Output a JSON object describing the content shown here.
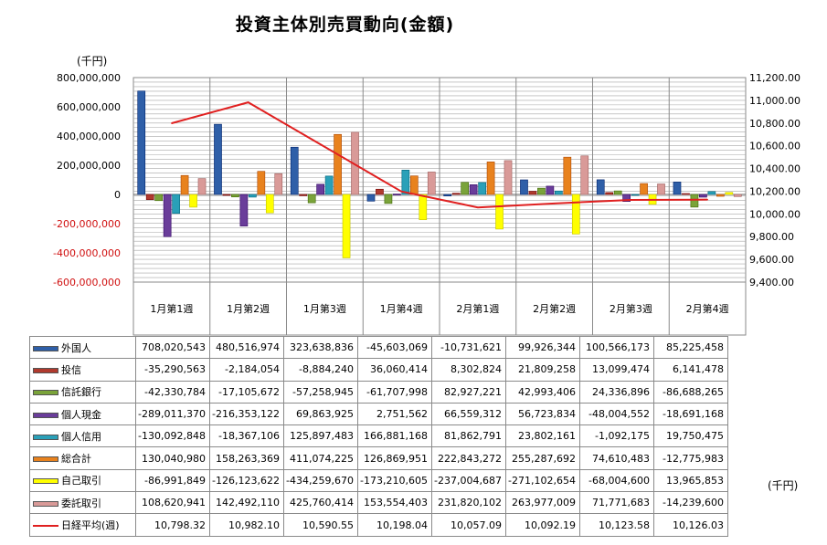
{
  "title": "投資主体別売買動向(金額)",
  "unit_label_top": "(千円)",
  "unit_label_right": "(千円)",
  "chart_data": {
    "type": "bar",
    "categories": [
      "1月第1週",
      "1月第2週",
      "1月第3週",
      "1月第4週",
      "2月第1週",
      "2月第2週",
      "2月第3週",
      "2月第4週"
    ],
    "y_left": {
      "ticks": [
        "800,000,000",
        "600,000,000",
        "400,000,000",
        "200,000,000",
        "0",
        "-200,000,000",
        "-400,000,000",
        "-600,000,000"
      ],
      "range": [
        -600000000,
        800000000
      ]
    },
    "y_right": {
      "ticks": [
        "11,200.00",
        "11,000.00",
        "10,800.00",
        "10,600.00",
        "10,400.00",
        "10,200.00",
        "10,000.00",
        "9,800.00",
        "9,600.00",
        "9,400.00"
      ],
      "range": [
        9400,
        11200
      ]
    },
    "series": [
      {
        "name": "外国人",
        "color": "#2f5fa8",
        "values": [
          708020543,
          480516974,
          323638836,
          -45603069,
          -10731621,
          99926344,
          100566173,
          85225458
        ],
        "labels": [
          "708,020,543",
          "480,516,974",
          "323,638,836",
          "-45,603,069",
          "-10,731,621",
          "99,926,344",
          "100,566,173",
          "85,225,458"
        ]
      },
      {
        "name": "投信",
        "color": "#b03a2e",
        "values": [
          -35290563,
          -2184054,
          -8884240,
          36060414,
          8302824,
          21809258,
          13099474,
          6141478
        ],
        "labels": [
          "-35,290,563",
          "-2,184,054",
          "-8,884,240",
          "36,060,414",
          "8,302,824",
          "21,809,258",
          "13,099,474",
          "6,141,478"
        ]
      },
      {
        "name": "信託銀行",
        "color": "#7aa33a",
        "values": [
          -42330784,
          -17105672,
          -57258945,
          -61707998,
          82927221,
          42993406,
          24336896,
          -86688265
        ],
        "labels": [
          "-42,330,784",
          "-17,105,672",
          "-57,258,945",
          "-61,707,998",
          "82,927,221",
          "42,993,406",
          "24,336,896",
          "-86,688,265"
        ]
      },
      {
        "name": "個人現金",
        "color": "#6a3d9a",
        "values": [
          -289011370,
          -216353122,
          69863925,
          2751562,
          66559312,
          56723834,
          -48004552,
          -18691168
        ],
        "labels": [
          "-289,011,370",
          "-216,353,122",
          "69,863,925",
          "2,751,562",
          "66,559,312",
          "56,723,834",
          "-48,004,552",
          "-18,691,168"
        ]
      },
      {
        "name": "個人信用",
        "color": "#2aa0b8",
        "values": [
          -130092848,
          -18367106,
          125897483,
          166881168,
          81862791,
          23802161,
          -1092175,
          19750475
        ],
        "labels": [
          "-130,092,848",
          "-18,367,106",
          "125,897,483",
          "166,881,168",
          "81,862,791",
          "23,802,161",
          "-1,092,175",
          "19,750,475"
        ]
      },
      {
        "name": "総合計",
        "color": "#e8821e",
        "values": [
          130040980,
          158263369,
          411074225,
          126869951,
          222843272,
          255287692,
          74610483,
          -12775983
        ],
        "labels": [
          "130,040,980",
          "158,263,369",
          "411,074,225",
          "126,869,951",
          "222,843,272",
          "255,287,692",
          "74,610,483",
          "-12,775,983"
        ]
      },
      {
        "name": "自己取引",
        "color": "#ffff00",
        "values": [
          -86991849,
          -126123622,
          -434259670,
          -173210605,
          -237004687,
          -271102654,
          -68004600,
          13965853
        ],
        "labels": [
          "-86,991,849",
          "-126,123,622",
          "-434,259,670",
          "-173,210,605",
          "-237,004,687",
          "-271,102,654",
          "-68,004,600",
          "13,965,853"
        ]
      },
      {
        "name": "委託取引",
        "color": "#d99a98",
        "values": [
          108620941,
          142492110,
          425760414,
          153554403,
          231820102,
          263977009,
          71771683,
          -14239600
        ],
        "labels": [
          "108,620,941",
          "142,492,110",
          "425,760,414",
          "153,554,403",
          "231,820,102",
          "263,977,009",
          "71,771,683",
          "-14,239,600"
        ]
      }
    ],
    "line_series": {
      "name": "日経平均(週)",
      "color": "#e02020",
      "axis": "right",
      "values": [
        10798.32,
        10982.1,
        10590.55,
        10198.04,
        10057.09,
        10092.19,
        10123.58,
        10126.03
      ],
      "labels": [
        "10,798.32",
        "10,982.10",
        "10,590.55",
        "10,198.04",
        "10,057.09",
        "10,092.19",
        "10,123.58",
        "10,126.03"
      ]
    }
  }
}
